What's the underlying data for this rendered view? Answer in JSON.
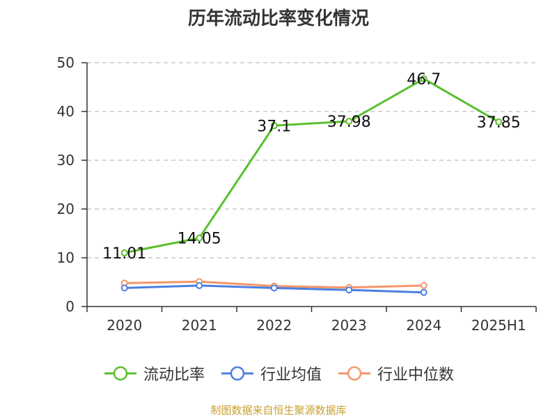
{
  "title": "历年流动比率变化情况",
  "source": "制图数据来自恒生聚源数据库",
  "colors": {
    "axis": "#333333",
    "grid": "#bdbdbd",
    "label": "#333333"
  },
  "chart_data": {
    "type": "line",
    "title": "历年流动比率变化情况",
    "x": [
      "2020",
      "2021",
      "2022",
      "2023",
      "2024",
      "2025H1"
    ],
    "ylim": [
      0,
      50
    ],
    "yticks": [
      0,
      10,
      20,
      30,
      40,
      50
    ],
    "grid": true,
    "legend_position": "bottom",
    "series": [
      {
        "name": "流动比率",
        "color": "#5bbf2b",
        "values": [
          11.01,
          14.05,
          37.1,
          37.98,
          46.7,
          37.85
        ],
        "labels": [
          "11.01",
          "14.05",
          "37.1",
          "37.98",
          "46.7",
          "37.85"
        ]
      },
      {
        "name": "行业均值",
        "color": "#4a7fe0",
        "values": [
          3.8,
          4.3,
          3.8,
          3.4,
          2.9,
          null
        ]
      },
      {
        "name": "行业中位数",
        "color": "#f5956a",
        "values": [
          4.8,
          5.1,
          4.2,
          3.9,
          4.3,
          null
        ]
      }
    ]
  }
}
